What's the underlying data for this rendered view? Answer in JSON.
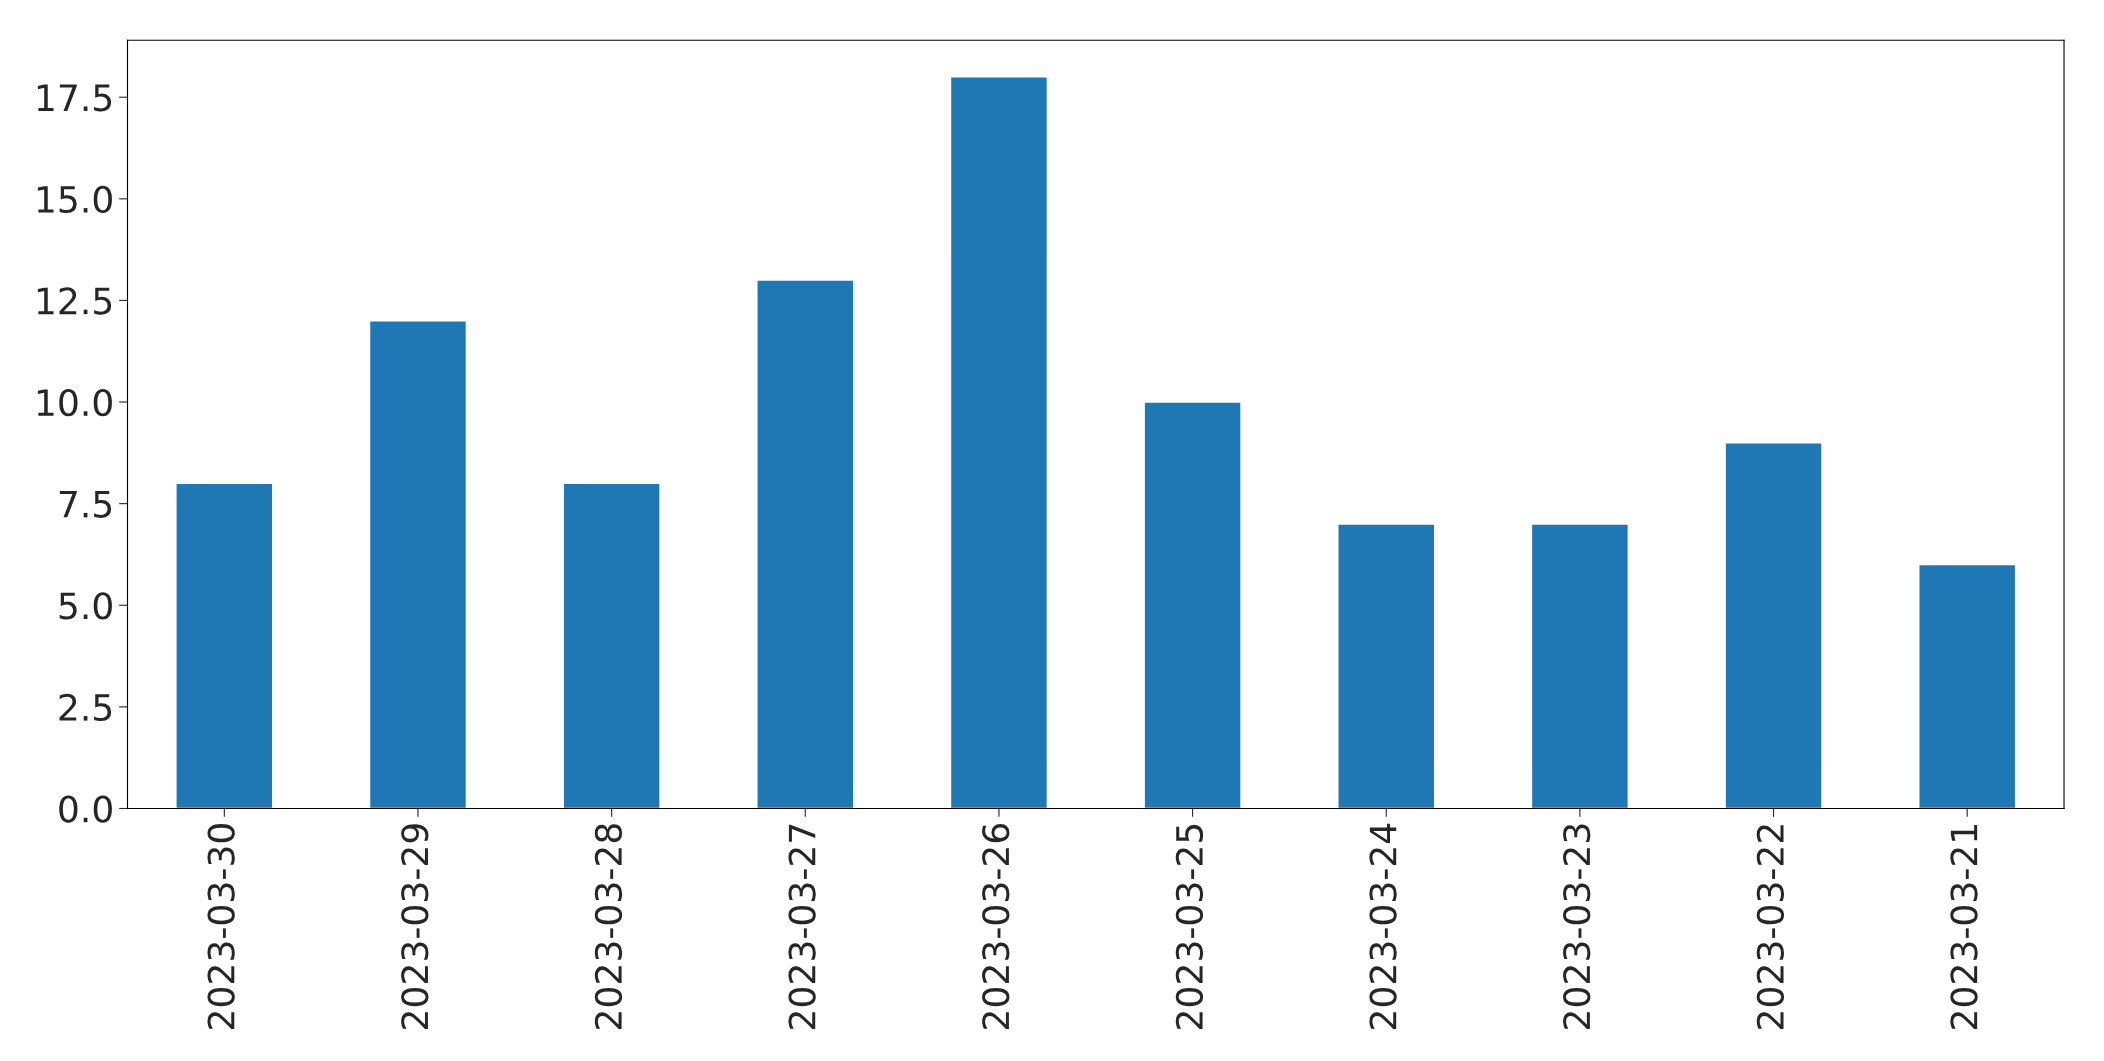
{
  "chart_data": {
    "type": "bar",
    "categories": [
      "2023-03-30",
      "2023-03-29",
      "2023-03-28",
      "2023-03-27",
      "2023-03-26",
      "2023-03-25",
      "2023-03-24",
      "2023-03-23",
      "2023-03-22",
      "2023-03-21"
    ],
    "values": [
      8,
      12,
      8,
      13,
      18,
      10,
      7,
      7,
      9,
      6
    ],
    "color": "#1f77b4",
    "ylim": [
      0,
      18.9
    ],
    "yticks": [
      {
        "value": 0,
        "label": "0.0"
      },
      {
        "value": 2.5,
        "label": "2.5"
      },
      {
        "value": 5,
        "label": "5.0"
      },
      {
        "value": 7.5,
        "label": "7.5"
      },
      {
        "value": 10,
        "label": "10.0"
      },
      {
        "value": 12.5,
        "label": "12.5"
      },
      {
        "value": 15,
        "label": "15.0"
      },
      {
        "value": 17.5,
        "label": "17.5"
      }
    ],
    "grid": false
  }
}
